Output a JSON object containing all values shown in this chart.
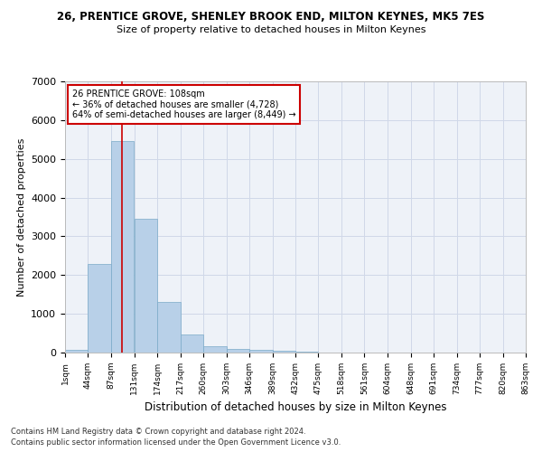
{
  "title1": "26, PRENTICE GROVE, SHENLEY BROOK END, MILTON KEYNES, MK5 7ES",
  "title2": "Size of property relative to detached houses in Milton Keynes",
  "xlabel": "Distribution of detached houses by size in Milton Keynes",
  "ylabel": "Number of detached properties",
  "footnote1": "Contains HM Land Registry data © Crown copyright and database right 2024.",
  "footnote2": "Contains public sector information licensed under the Open Government Licence v3.0.",
  "bar_color": "#b8d0e8",
  "bar_edge_color": "#7aaac8",
  "grid_color": "#d0d8e8",
  "bg_color": "#eef2f8",
  "annotation_line1": "26 PRENTICE GROVE: 108sqm",
  "annotation_line2": "← 36% of detached houses are smaller (4,728)",
  "annotation_line3": "64% of semi-detached houses are larger (8,449) →",
  "vline_x": 108,
  "vline_color": "#cc0000",
  "annotation_box_color": "#cc0000",
  "ylim": [
    0,
    7000
  ],
  "yticks": [
    0,
    1000,
    2000,
    3000,
    4000,
    5000,
    6000,
    7000
  ],
  "bin_edges": [
    1,
    44,
    87,
    131,
    174,
    217,
    260,
    303,
    346,
    389,
    432,
    475,
    518,
    561,
    604,
    648,
    691,
    734,
    777,
    820,
    863
  ],
  "bin_labels": [
    "1sqm",
    "44sqm",
    "87sqm",
    "131sqm",
    "174sqm",
    "217sqm",
    "260sqm",
    "303sqm",
    "346sqm",
    "389sqm",
    "432sqm",
    "475sqm",
    "518sqm",
    "561sqm",
    "604sqm",
    "648sqm",
    "691sqm",
    "734sqm",
    "777sqm",
    "820sqm",
    "863sqm"
  ],
  "counts": [
    80,
    2280,
    5470,
    3450,
    1310,
    470,
    155,
    100,
    65,
    45,
    15,
    5,
    3,
    2,
    1,
    1,
    0,
    0,
    0,
    0
  ]
}
